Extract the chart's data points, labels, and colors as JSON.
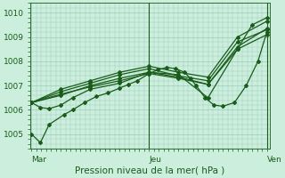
{
  "bg_color": "#cceedd",
  "line_color": "#1a5c1a",
  "grid_color": "#99ccbb",
  "title": "Pression niveau de la mer( hPa )",
  "xlabel_ticks": [
    "Mar",
    "Jeu",
    "Ven"
  ],
  "xlabel_tick_pos": [
    0.0,
    2.0,
    4.0
  ],
  "ylim": [
    1004.4,
    1010.4
  ],
  "yticks": [
    1005,
    1006,
    1007,
    1008,
    1009,
    1010
  ],
  "xlim": [
    -0.02,
    4.05
  ],
  "lines": [
    {
      "x": [
        0.0,
        0.15,
        0.3,
        0.55,
        0.7,
        0.9,
        1.1,
        1.3,
        1.5,
        1.65,
        1.8,
        2.0,
        2.15,
        2.3,
        2.45,
        2.6,
        2.7,
        2.8,
        2.95,
        3.1,
        3.25,
        3.45,
        3.65,
        3.85,
        4.0
      ],
      "y": [
        1005.0,
        1004.65,
        1005.4,
        1005.8,
        1006.0,
        1006.3,
        1006.55,
        1006.7,
        1006.9,
        1007.05,
        1007.2,
        1007.5,
        1007.65,
        1007.75,
        1007.7,
        1007.55,
        1007.3,
        1007.0,
        1006.5,
        1006.2,
        1006.15,
        1006.3,
        1007.0,
        1008.0,
        1009.2
      ]
    },
    {
      "x": [
        0.0,
        0.5,
        1.0,
        1.5,
        2.0,
        2.5,
        3.0,
        3.5,
        4.0
      ],
      "y": [
        1006.3,
        1006.6,
        1007.0,
        1007.3,
        1007.55,
        1007.35,
        1007.05,
        1008.6,
        1009.35
      ]
    },
    {
      "x": [
        0.0,
        0.5,
        1.0,
        1.5,
        2.0,
        2.5,
        3.0,
        3.5,
        4.0
      ],
      "y": [
        1006.3,
        1006.75,
        1007.1,
        1007.45,
        1007.7,
        1007.4,
        1007.2,
        1008.8,
        1009.3
      ]
    },
    {
      "x": [
        0.0,
        0.5,
        1.0,
        1.5,
        2.0,
        2.5,
        3.0,
        3.5,
        4.0
      ],
      "y": [
        1006.3,
        1006.85,
        1007.2,
        1007.55,
        1007.8,
        1007.55,
        1007.35,
        1009.0,
        1009.65
      ]
    },
    {
      "x": [
        0.0,
        0.5,
        1.0,
        1.5,
        2.0,
        2.5,
        3.0,
        3.5,
        4.0
      ],
      "y": [
        1006.3,
        1006.65,
        1006.95,
        1007.2,
        1007.5,
        1007.3,
        1007.05,
        1008.5,
        1009.1
      ]
    },
    {
      "x": [
        0.0,
        0.15,
        0.3,
        0.5,
        0.7,
        1.0,
        1.5,
        2.0,
        2.5,
        3.0,
        3.5,
        3.75,
        4.0
      ],
      "y": [
        1006.3,
        1006.1,
        1006.05,
        1006.2,
        1006.5,
        1006.85,
        1007.1,
        1007.55,
        1007.45,
        1006.5,
        1008.5,
        1009.5,
        1009.8
      ]
    }
  ],
  "vlines_x": [
    2.0,
    4.0
  ],
  "marker": "D",
  "markersize": 2.0,
  "linewidth": 0.9,
  "fontsize_label": 7.5,
  "fontsize_ticks": 6.5
}
